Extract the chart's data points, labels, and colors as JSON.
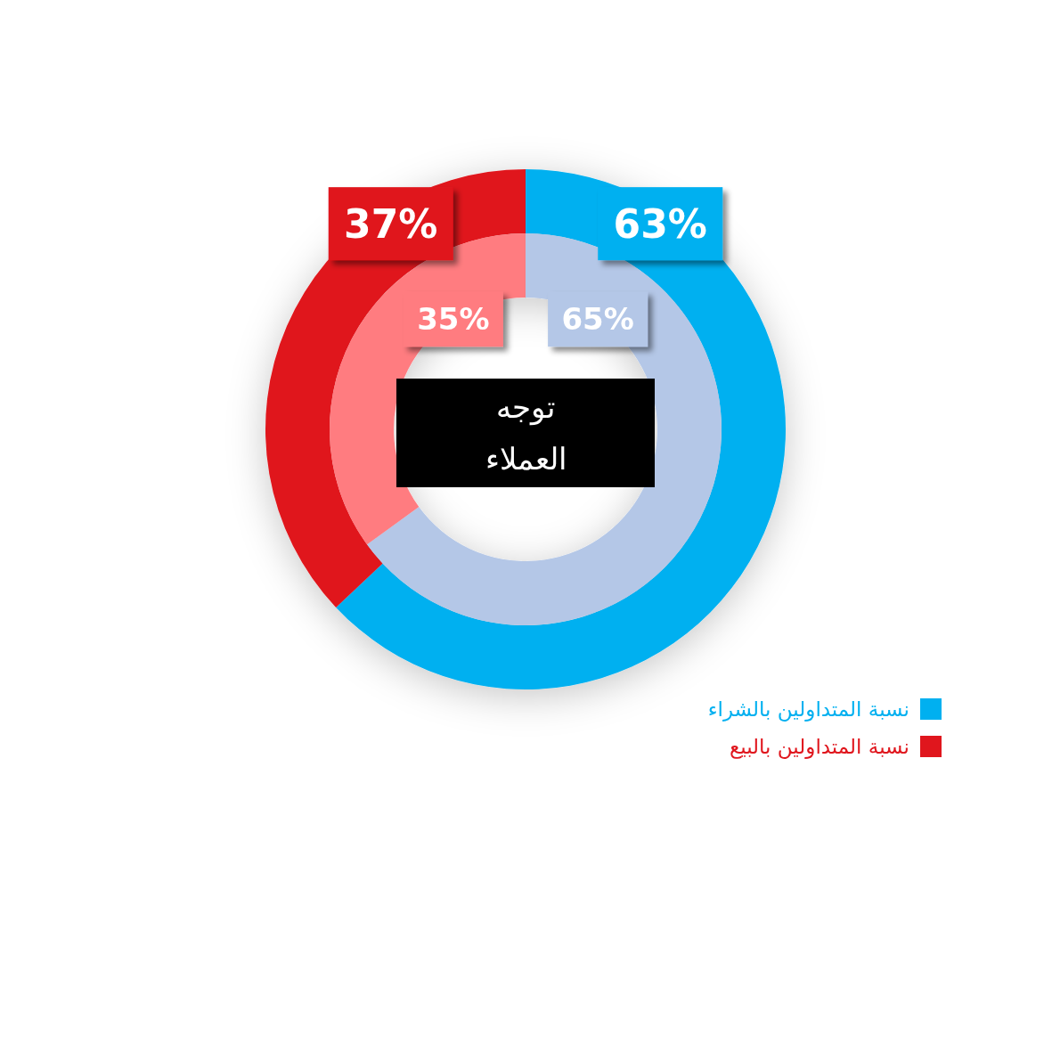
{
  "chart_data": {
    "type": "donut",
    "title": "توجه العملاء",
    "categories": [
      "نسبة المتداولين بالشراء",
      "نسبة المتداولين بالبيع"
    ],
    "series": [
      {
        "colors": [
          "#00b0f0",
          "#e0161d"
        ],
        "values": [
          63,
          37
        ],
        "value_labels": [
          "63%",
          "37%"
        ]
      },
      {
        "colors": [
          "#b4c7e7",
          "#ff7c80"
        ],
        "values": [
          65,
          35
        ],
        "value_labels": [
          "65%",
          "35%"
        ]
      }
    ],
    "legend": "bottom right"
  }
}
